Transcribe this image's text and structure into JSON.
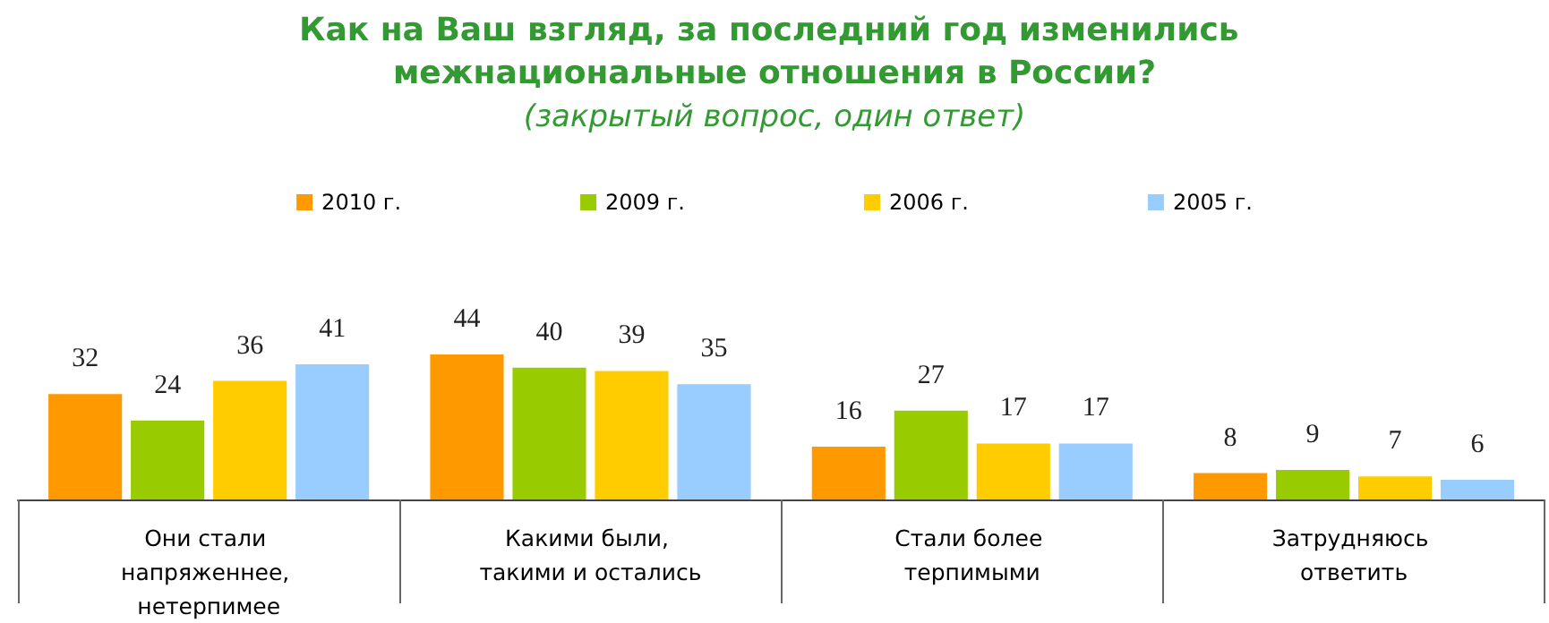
{
  "chart_data": {
    "type": "bar",
    "title": "Как на Ваш взгляд, за последний год изменились межнациональные отношения в России?",
    "subtitle": "(закрытый вопрос, один ответ)",
    "categories": [
      "Они стали напряженнее, нетерпимее",
      "Какими были, такими и остались",
      "Стали более терпимыми",
      "Затрудняюсь ответить"
    ],
    "series": [
      {
        "name": "2010 г.",
        "color": "#ff9900",
        "values": [
          32,
          44,
          16,
          8
        ]
      },
      {
        "name": "2009 г.",
        "color": "#99cc00",
        "values": [
          24,
          40,
          27,
          9
        ]
      },
      {
        "name": "2006 г.",
        "color": "#ffcc00",
        "values": [
          36,
          39,
          17,
          7
        ]
      },
      {
        "name": "2005 г.",
        "color": "#99ccff",
        "values": [
          41,
          35,
          17,
          6
        ]
      }
    ],
    "data_labels": true,
    "legend": "top"
  }
}
